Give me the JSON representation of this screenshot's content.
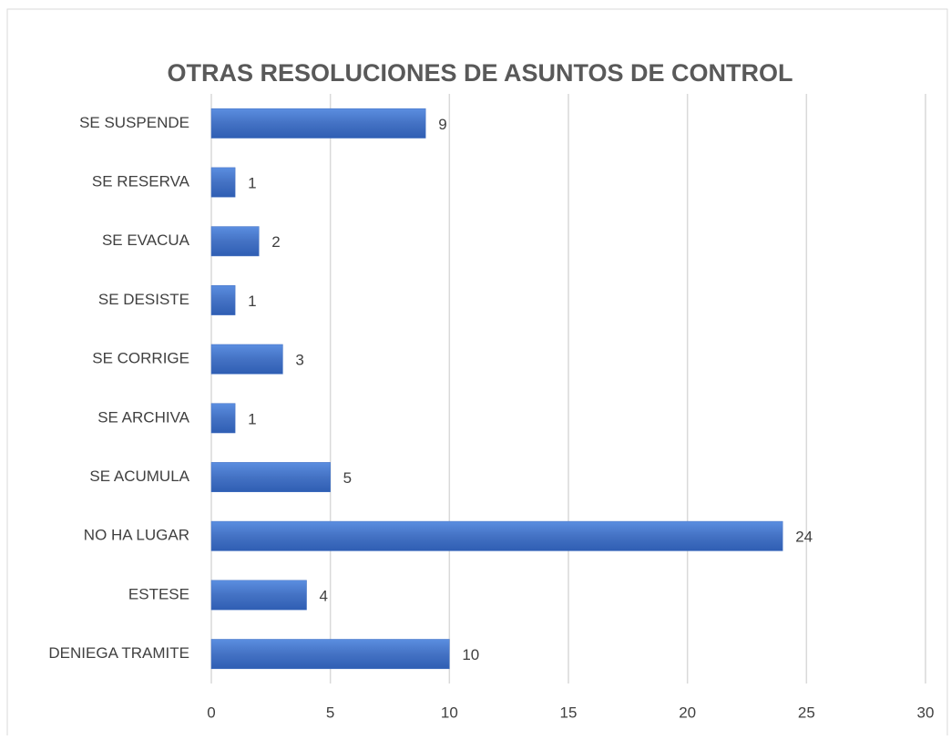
{
  "chart_data": {
    "type": "hbar",
    "title": "OTRAS RESOLUCIONES DE ASUNTOS DE CONTROL",
    "categories": [
      "SE SUSPENDE",
      "SE RESERVA",
      "SE EVACUA",
      "SE DESISTE",
      "SE CORRIGE",
      "SE ARCHIVA",
      "SE ACUMULA",
      "NO HA LUGAR",
      "ESTESE",
      "DENIEGA TRAMITE"
    ],
    "values": [
      9,
      1,
      2,
      1,
      3,
      1,
      5,
      24,
      4,
      10
    ],
    "color": "#4472c4",
    "xlim": [
      0,
      30
    ],
    "xticks": [
      0,
      5,
      10,
      15,
      20,
      25,
      30
    ],
    "grid": true
  }
}
